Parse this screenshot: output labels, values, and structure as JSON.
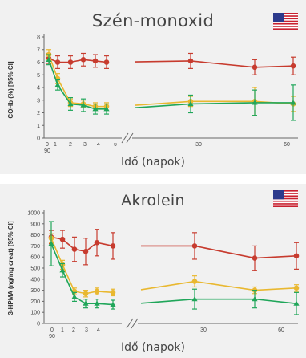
{
  "colors": {
    "red": "#c73b2e",
    "yellow": "#e9b830",
    "green": "#20a65a",
    "axis": "#666666",
    "panel_bg": "#f1f1f1"
  },
  "icons": {
    "flag": "us-flag-icon"
  },
  "panels": [
    {
      "title": "Szén-monoxid",
      "xlabel": "Idő (napok)"
    },
    {
      "title": "Akrolein",
      "xlabel": "Idő (napok)"
    }
  ],
  "chart_data": [
    {
      "type": "line",
      "title": "Szén-monoxid",
      "xlabel": "Idő (napok)",
      "ylabel": "COHb (%) [95% CI]",
      "ylim": [
        0,
        8
      ],
      "yticks": [
        "0",
        "1",
        "2",
        "3",
        "4",
        "5",
        "6",
        "7",
        "8"
      ],
      "xticks": [
        "0",
        "1",
        "2",
        "3",
        "4",
        "30",
        "60"
      ],
      "xticks_secondary": [
        "90"
      ],
      "axis_break_mark": "ʋ",
      "x": [
        0,
        0.5,
        1,
        2,
        3,
        4,
        21,
        42,
        63
      ],
      "series": [
        {
          "color": "red",
          "values": [
            6.3,
            6.0,
            6.0,
            6.2,
            6.1,
            6.0,
            6.1,
            5.6,
            5.7
          ],
          "err": [
            0.4,
            0.5,
            0.5,
            0.5,
            0.5,
            0.5,
            0.6,
            0.6,
            0.7
          ]
        },
        {
          "color": "yellow",
          "values": [
            6.6,
            4.7,
            2.8,
            2.7,
            2.5,
            2.5,
            2.9,
            2.9,
            2.7
          ],
          "err": [
            0.4,
            0.4,
            0.3,
            0.3,
            0.3,
            0.3,
            0.4,
            1.1,
            0.6
          ]
        },
        {
          "color": "green",
          "values": [
            6.2,
            4.2,
            2.7,
            2.6,
            2.3,
            2.3,
            2.7,
            2.8,
            2.8
          ],
          "err": [
            0.4,
            0.4,
            0.5,
            0.5,
            0.4,
            0.4,
            0.7,
            1.0,
            1.4
          ]
        }
      ]
    },
    {
      "type": "line",
      "title": "Akrolein",
      "xlabel": "Idő (napok)",
      "ylabel": "3-HPMA (ng/mg creat) [95% CI]",
      "ylim": [
        0,
        1000
      ],
      "yticks": [
        "0",
        "100",
        "200",
        "300",
        "400",
        "500",
        "600",
        "700",
        "800",
        "900",
        "1000"
      ],
      "xticks": [
        "0",
        "1",
        "2",
        "3",
        "4",
        "30",
        "60"
      ],
      "xticks_secondary": [
        "90"
      ],
      "x": [
        0,
        0.5,
        1,
        2,
        3,
        4,
        21,
        42,
        63
      ],
      "series": [
        {
          "color": "red",
          "values": [
            780,
            760,
            670,
            650,
            730,
            700,
            700,
            590,
            610
          ],
          "err": [
            60,
            80,
            110,
            120,
            120,
            120,
            120,
            110,
            120
          ]
        },
        {
          "color": "yellow",
          "values": [
            770,
            530,
            290,
            270,
            290,
            280,
            380,
            300,
            320
          ],
          "err": [
            40,
            40,
            30,
            30,
            30,
            30,
            50,
            30,
            30
          ]
        },
        {
          "color": "green",
          "values": [
            720,
            480,
            240,
            180,
            180,
            170,
            220,
            220,
            180
          ],
          "err": [
            200,
            60,
            40,
            40,
            40,
            40,
            90,
            80,
            100
          ]
        }
      ]
    }
  ]
}
